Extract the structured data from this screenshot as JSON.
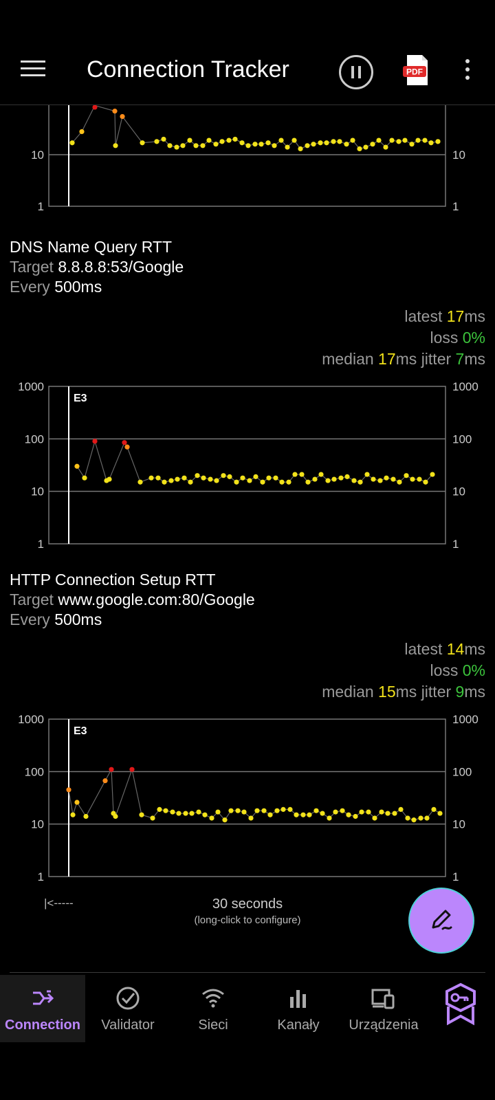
{
  "appbar": {
    "title": "Connection Tracker",
    "pdf_label": "PDF"
  },
  "charts": {
    "y_ticks": [
      "1000",
      "100",
      "10",
      "1"
    ],
    "marker": "E3"
  },
  "sections": [
    {
      "title": "DNS Name Query RTT",
      "target_label": "Target",
      "target_value": "8.8.8.8:53/Google",
      "every_label": "Every",
      "every_value": "500ms",
      "latest_label": "latest",
      "latest_value": "17",
      "unit": "ms",
      "loss_label": "loss",
      "loss_value": "0%",
      "median_label": "median",
      "median_value": "17",
      "jitter_label": "ms jitter",
      "jitter_value": "7",
      "jitter_unit": "ms"
    },
    {
      "title": "HTTP Connection Setup RTT",
      "target_label": "Target",
      "target_value": "www.google.com:80/Google",
      "every_label": "Every",
      "every_value": "500ms",
      "latest_label": "latest",
      "latest_value": "14",
      "unit": "ms",
      "loss_label": "loss",
      "loss_value": "0%",
      "median_label": "median",
      "median_value": "15",
      "jitter_label": "ms jitter",
      "jitter_value": "9",
      "jitter_unit": "ms"
    }
  ],
  "timeaxis": {
    "back_label": "|<-----",
    "span": "30 seconds",
    "hint": "(long-click to configure)"
  },
  "nav": {
    "items": [
      {
        "label": "Connection",
        "icon": "connection-icon",
        "active": true
      },
      {
        "label": "Validator",
        "icon": "check-circle-icon"
      },
      {
        "label": "Sieci",
        "icon": "wifi-icon"
      },
      {
        "label": "Kanały",
        "icon": "bar-chart-icon"
      },
      {
        "label": "Urządzenia",
        "icon": "devices-icon"
      }
    ],
    "premium_icon": "premium-badge-icon"
  },
  "colors": {
    "accent": "#bb86fc",
    "good": "#f2e21a",
    "warn": "#ff8c1a",
    "bad": "#e01818",
    "loss": "#3cc33c"
  }
}
